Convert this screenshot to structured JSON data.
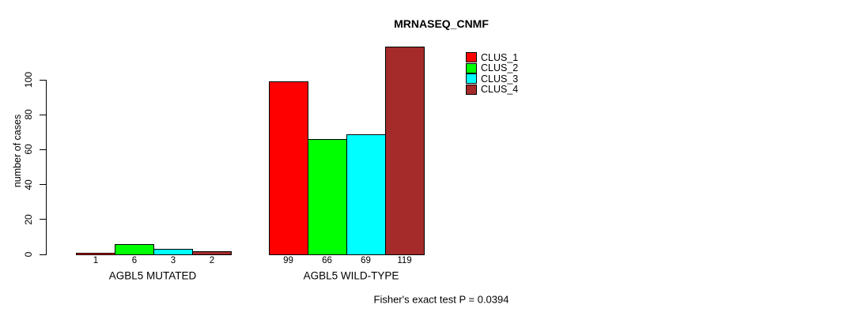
{
  "title": "MRNASEQ_CNMF",
  "y_axis": {
    "label": "number of cases"
  },
  "footer": "Fisher's exact test P = 0.0394",
  "chart_data": {
    "type": "bar",
    "title": "MRNASEQ_CNMF",
    "xlabel": "",
    "ylabel": "number of cases",
    "ylim": [
      0,
      100
    ],
    "yticks": [
      0,
      20,
      40,
      60,
      80,
      100
    ],
    "grid": false,
    "categories": [
      "AGBL5 MUTATED",
      "AGBL5 WILD-TYPE"
    ],
    "series": [
      {
        "name": "CLUS_1",
        "color": "#ff0000",
        "values": [
          1,
          99
        ]
      },
      {
        "name": "CLUS_2",
        "color": "#00ff00",
        "values": [
          6,
          66
        ]
      },
      {
        "name": "CLUS_3",
        "color": "#00ffff",
        "values": [
          3,
          69
        ]
      },
      {
        "name": "CLUS_4",
        "color": "#a52a2a",
        "values": [
          2,
          119
        ]
      }
    ],
    "bar_value_labels": [
      [
        "1",
        "6",
        "3",
        "2"
      ],
      [
        "99",
        "66",
        "69",
        "119"
      ]
    ],
    "legend_position": "top-right",
    "annotation": "Fisher's exact test P = 0.0394"
  }
}
